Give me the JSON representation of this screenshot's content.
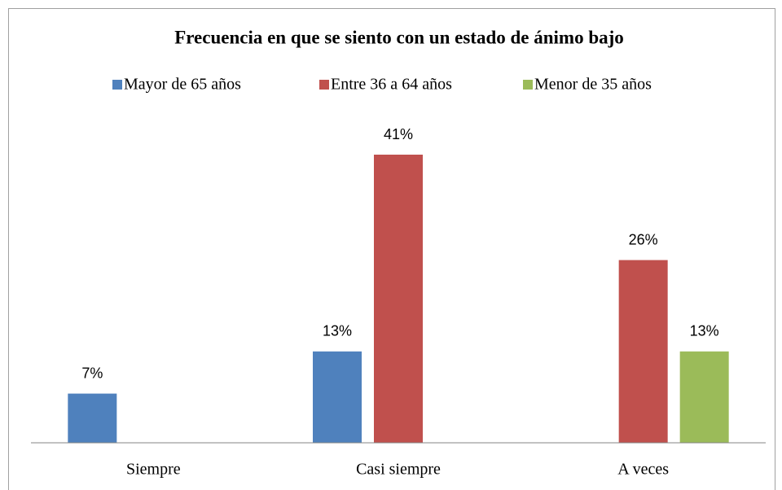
{
  "chart_data": {
    "type": "bar",
    "title": "Frecuencia en que se siento con un estado de ánimo bajo",
    "categories": [
      "Siempre",
      "Casi siempre",
      "A veces"
    ],
    "series": [
      {
        "name": "Mayor de 65 años",
        "color": "#4f81bd",
        "values": [
          7,
          13,
          null
        ],
        "value_labels": [
          "7%",
          "13%",
          null
        ]
      },
      {
        "name": "Entre 36 a 64 años",
        "color": "#c0504d",
        "values": [
          null,
          41,
          26
        ],
        "value_labels": [
          null,
          "41%",
          "26%"
        ]
      },
      {
        "name": "Menor de 35 años",
        "color": "#9bbb59",
        "values": [
          null,
          null,
          13
        ],
        "value_labels": [
          null,
          null,
          "13%"
        ]
      }
    ],
    "ylim": [
      0,
      45
    ],
    "legend": "top"
  }
}
